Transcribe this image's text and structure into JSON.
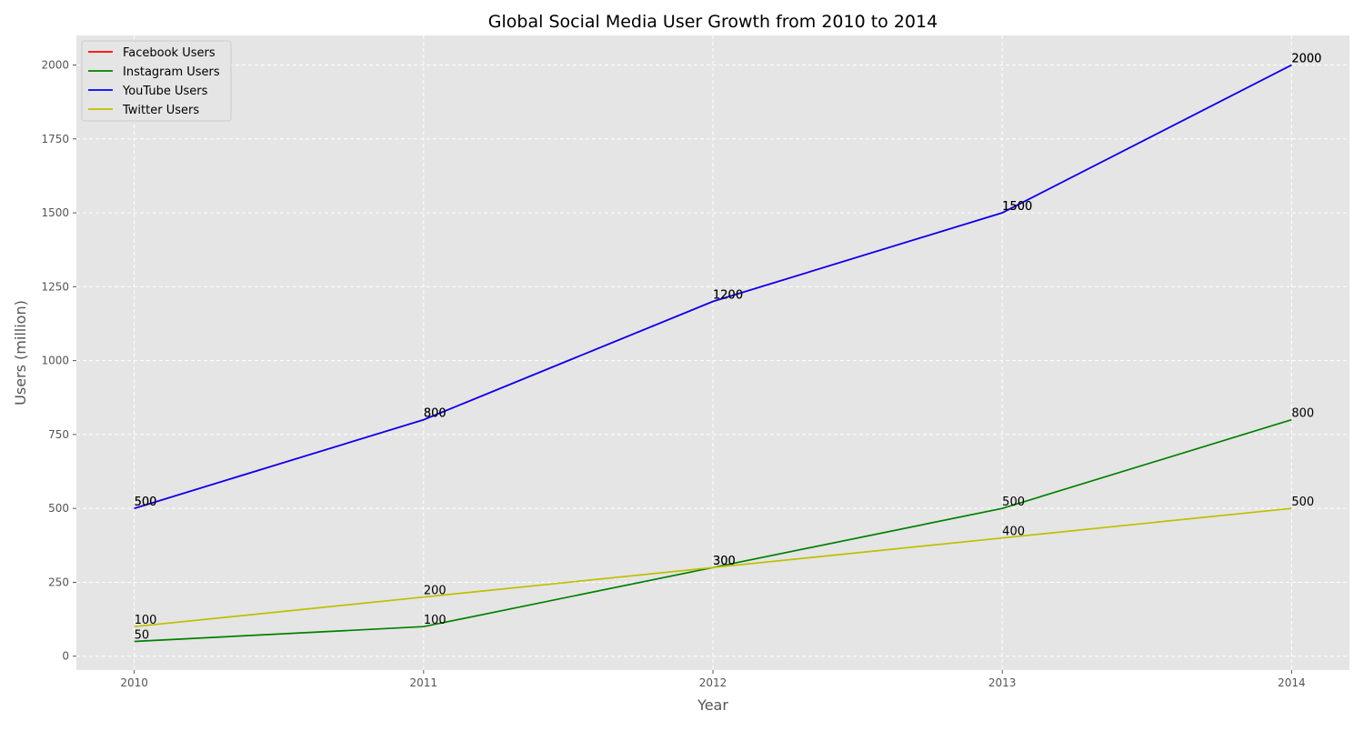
{
  "chart_data": {
    "type": "line",
    "title": "Global Social Media User Growth from 2010 to 2014",
    "xlabel": "Year",
    "ylabel": "Users (million)",
    "categories": [
      "2010",
      "2011",
      "2012",
      "2013",
      "2014"
    ],
    "x": [
      2010,
      2011,
      2012,
      2013,
      2014
    ],
    "xlim": [
      2009.8,
      2014.2
    ],
    "ylim": [
      -47,
      2100
    ],
    "yticks": [
      0,
      250,
      500,
      750,
      1000,
      1250,
      1500,
      1750,
      2000
    ],
    "ytick_labels": [
      "0",
      "250",
      "500",
      "750",
      "1000",
      "1250",
      "1500",
      "1750",
      "2000"
    ],
    "grid": true,
    "background": "#e5e5e5",
    "legend_position": "top-left",
    "series": [
      {
        "name": "Facebook Users",
        "color": "#ff0000",
        "values": [
          500,
          800,
          1200,
          1500,
          2000
        ]
      },
      {
        "name": "Instagram Users",
        "color": "#008000",
        "values": [
          50,
          100,
          300,
          500,
          800
        ]
      },
      {
        "name": "YouTube Users",
        "color": "#0000ff",
        "values": [
          500,
          800,
          1200,
          1500,
          2000
        ]
      },
      {
        "name": "Twitter Users",
        "color": "#bfbf00",
        "values": [
          100,
          200,
          300,
          400,
          500
        ]
      }
    ]
  }
}
